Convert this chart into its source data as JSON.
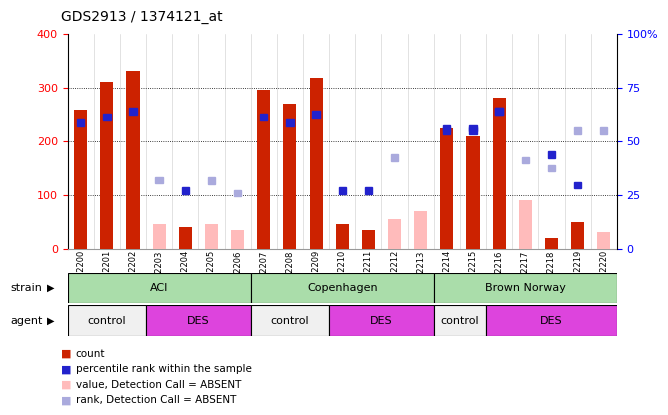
{
  "title": "GDS2913 / 1374121_at",
  "samples": [
    "GSM92200",
    "GSM92201",
    "GSM92202",
    "GSM92203",
    "GSM92204",
    "GSM92205",
    "GSM92206",
    "GSM92207",
    "GSM92208",
    "GSM92209",
    "GSM92210",
    "GSM92211",
    "GSM92212",
    "GSM92213",
    "GSM92214",
    "GSM92215",
    "GSM92216",
    "GSM92217",
    "GSM92218",
    "GSM92219",
    "GSM92220"
  ],
  "count_present": [
    258,
    310,
    330,
    null,
    40,
    null,
    null,
    295,
    270,
    318,
    45,
    35,
    null,
    null,
    225,
    210,
    280,
    null,
    20,
    50,
    null
  ],
  "count_absent": [
    null,
    null,
    null,
    45,
    null,
    45,
    35,
    null,
    null,
    null,
    null,
    null,
    55,
    70,
    null,
    null,
    null,
    90,
    null,
    null,
    30
  ],
  "rank_present": [
    235,
    245,
    255,
    null,
    108,
    null,
    null,
    245,
    235,
    250,
    null,
    null,
    null,
    null,
    225,
    225,
    255,
    null,
    null,
    null,
    null
  ],
  "rank_absent": [
    null,
    null,
    null,
    128,
    null,
    127,
    104,
    null,
    null,
    null,
    null,
    null,
    170,
    null,
    null,
    null,
    null,
    165,
    150,
    220,
    220
  ],
  "percentile_present": [
    null,
    null,
    null,
    null,
    null,
    null,
    null,
    null,
    null,
    null,
    108,
    108,
    null,
    null,
    220,
    220,
    255,
    null,
    175,
    118,
    null
  ],
  "ylim": [
    0,
    400
  ],
  "yticks": [
    0,
    100,
    200,
    300,
    400
  ],
  "strain_groups": [
    {
      "label": "ACI",
      "start": 0,
      "end": 6
    },
    {
      "label": "Copenhagen",
      "start": 7,
      "end": 13
    },
    {
      "label": "Brown Norway",
      "start": 14,
      "end": 20
    }
  ],
  "agent_groups": [
    {
      "label": "control",
      "start": 0,
      "end": 2
    },
    {
      "label": "DES",
      "start": 3,
      "end": 6
    },
    {
      "label": "control",
      "start": 7,
      "end": 9
    },
    {
      "label": "DES",
      "start": 10,
      "end": 13
    },
    {
      "label": "control",
      "start": 14,
      "end": 15
    },
    {
      "label": "DES",
      "start": 16,
      "end": 20
    }
  ],
  "color_count_present": "#cc2200",
  "color_count_absent": "#ffbbbb",
  "color_rank_present": "#2222cc",
  "color_rank_absent": "#aaaadd",
  "strain_color": "#aaddaa",
  "control_color": "#f0f0f0",
  "des_color": "#dd44dd",
  "bg_color": "#ffffff"
}
